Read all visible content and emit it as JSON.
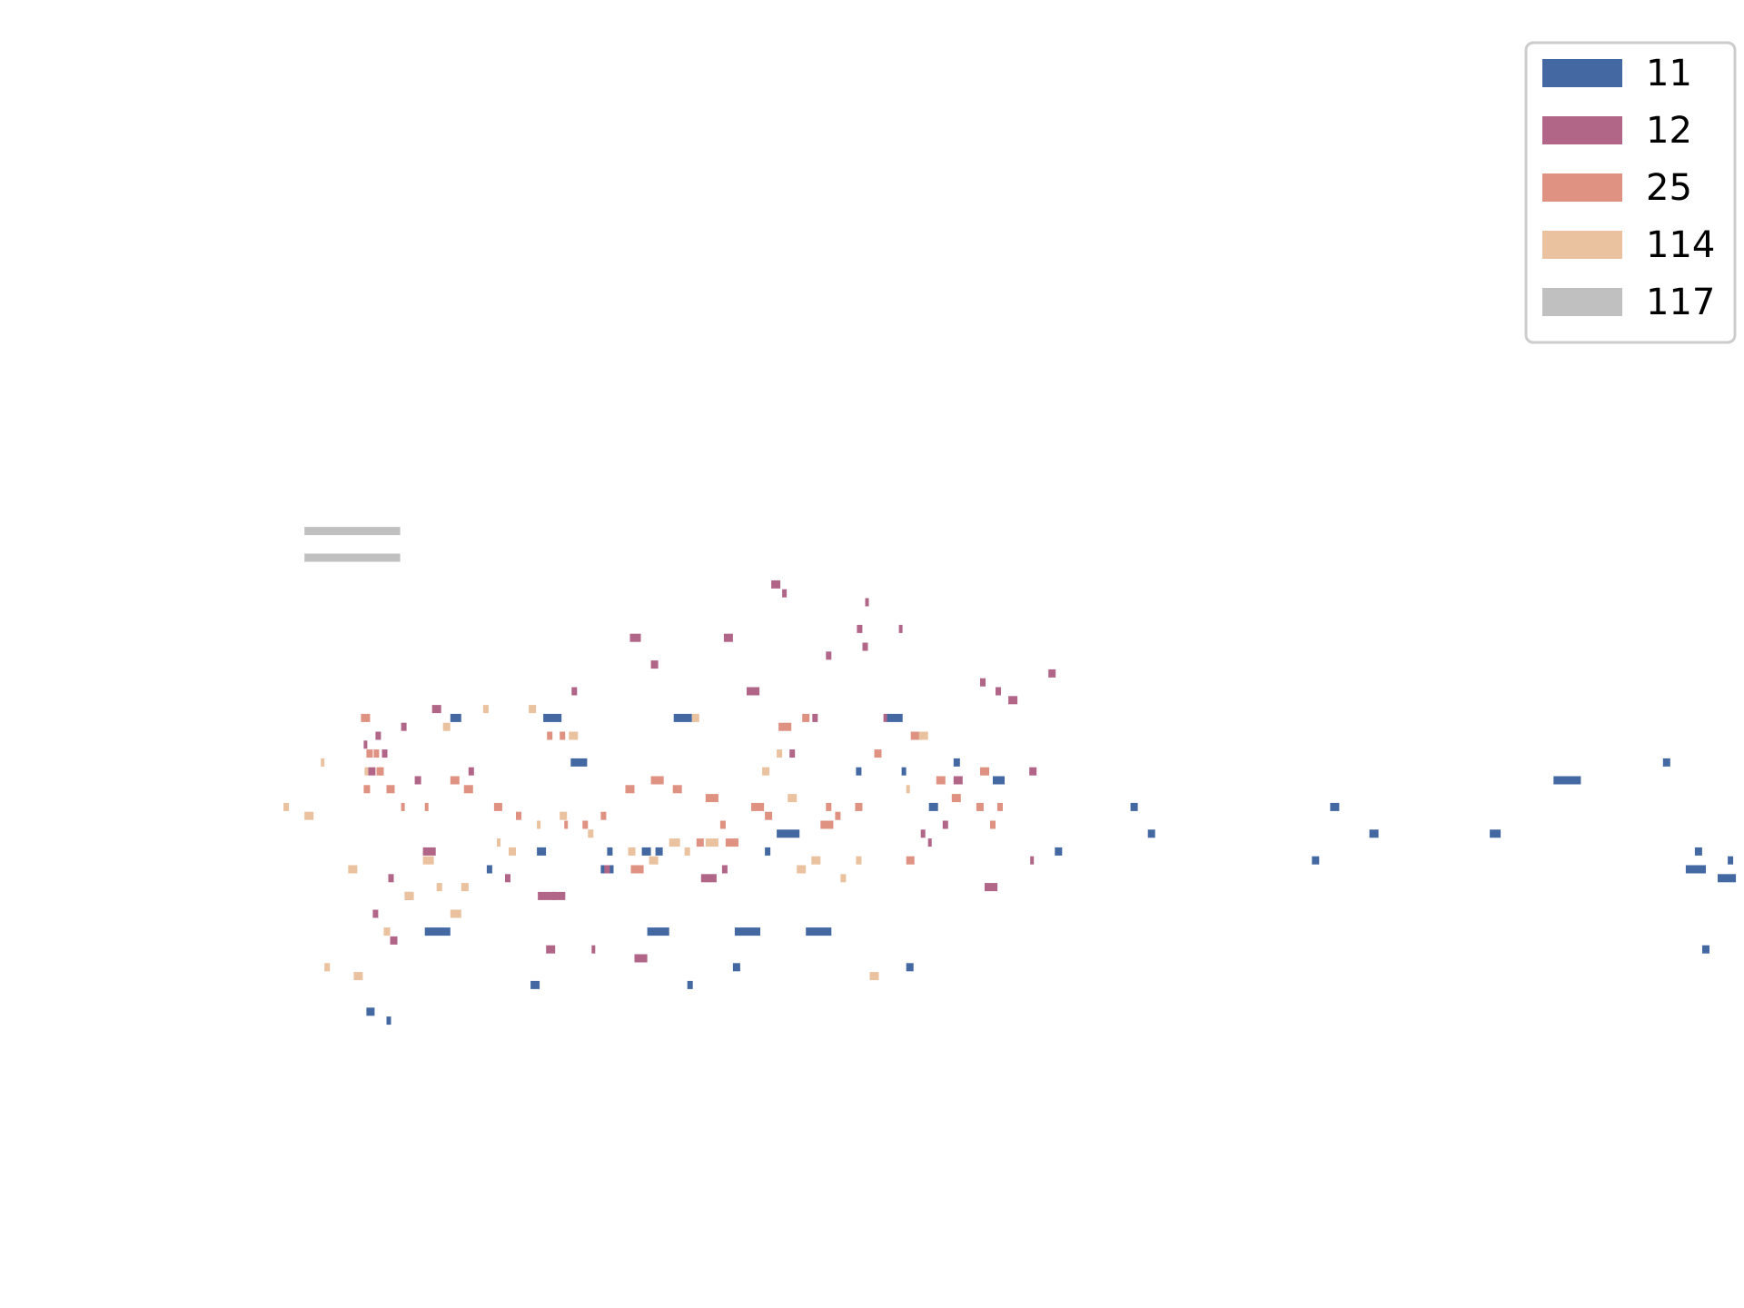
{
  "chart_data": {
    "type": "piano-roll",
    "title": "",
    "xlabel": "",
    "ylabel": "",
    "xlim": [
      0,
      1320
    ],
    "ylim": [
      20,
      120
    ],
    "legend": {
      "placement": "top-right",
      "entries": [
        {
          "label": "11",
          "color": "#4469a2"
        },
        {
          "label": "12",
          "color": "#b16688"
        },
        {
          "label": "25",
          "color": "#df9282"
        },
        {
          "label": "114",
          "color": "#eac29f"
        },
        {
          "label": "117",
          "color": "#c0c0c0"
        }
      ]
    },
    "series": [
      {
        "name": "11",
        "notes": [
          [
            108,
            9,
            39
          ],
          [
            130,
            5,
            38
          ],
          [
            172,
            28,
            48
          ],
          [
            200,
            12,
            72
          ],
          [
            240,
            6,
            55
          ],
          [
            288,
            10,
            42
          ],
          [
            295,
            10,
            57
          ],
          [
            302,
            20,
            72
          ],
          [
            332,
            18,
            67
          ],
          [
            365,
            14,
            55
          ],
          [
            372,
            6,
            57
          ],
          [
            410,
            10,
            57
          ],
          [
            416,
            24,
            48
          ],
          [
            425,
            8,
            57
          ],
          [
            445,
            20,
            72
          ],
          [
            460,
            6,
            42
          ],
          [
            510,
            8,
            44
          ],
          [
            512,
            28,
            48
          ],
          [
            545,
            6,
            57
          ],
          [
            558,
            25,
            59
          ],
          [
            590,
            28,
            48
          ],
          [
            645,
            6,
            66
          ],
          [
            678,
            18,
            72
          ],
          [
            695,
            5,
            66
          ],
          [
            700,
            8,
            44
          ],
          [
            725,
            10,
            62
          ],
          [
            752,
            7,
            67
          ],
          [
            795,
            13,
            65
          ],
          [
            863,
            8,
            57
          ],
          [
            946,
            8,
            62
          ],
          [
            965,
            8,
            59
          ],
          [
            1145,
            8,
            56
          ],
          [
            1165,
            10,
            62
          ],
          [
            1208,
            10,
            59
          ],
          [
            1340,
            12,
            59
          ],
          [
            1410,
            30,
            65
          ],
          [
            1530,
            8,
            67
          ],
          [
            1555,
            22,
            55
          ],
          [
            1565,
            8,
            57
          ],
          [
            1573,
            8,
            46
          ],
          [
            1590,
            20,
            54
          ],
          [
            1601,
            6,
            56
          ],
          [
            1619,
            6,
            54
          ]
        ]
      },
      {
        "name": "12",
        "notes": [
          [
            105,
            4,
            69
          ],
          [
            110,
            8,
            66
          ],
          [
            115,
            6,
            50
          ],
          [
            118,
            6,
            70
          ],
          [
            125,
            6,
            68
          ],
          [
            132,
            6,
            54
          ],
          [
            134,
            8,
            47
          ],
          [
            146,
            6,
            71
          ],
          [
            150,
            8,
            52
          ],
          [
            161,
            7,
            65
          ],
          [
            170,
            14,
            57
          ],
          [
            180,
            10,
            73
          ],
          [
            220,
            6,
            66
          ],
          [
            260,
            6,
            54
          ],
          [
            296,
            20,
            52
          ],
          [
            305,
            10,
            46
          ],
          [
            312,
            14,
            52
          ],
          [
            333,
            6,
            75
          ],
          [
            355,
            4,
            46
          ],
          [
            369,
            6,
            55
          ],
          [
            397,
            12,
            81
          ],
          [
            402,
            14,
            45
          ],
          [
            420,
            8,
            78
          ],
          [
            475,
            17,
            54
          ],
          [
            498,
            6,
            55
          ],
          [
            500,
            10,
            81
          ],
          [
            525,
            14,
            75
          ],
          [
            552,
            10,
            87
          ],
          [
            564,
            5,
            86
          ],
          [
            572,
            6,
            68
          ],
          [
            597,
            6,
            72
          ],
          [
            612,
            6,
            79
          ],
          [
            646,
            6,
            82
          ],
          [
            652,
            6,
            80
          ],
          [
            655,
            4,
            85
          ],
          [
            675,
            4,
            72
          ],
          [
            692,
            4,
            82
          ],
          [
            716,
            5,
            59
          ],
          [
            724,
            4,
            58
          ],
          [
            740,
            6,
            60
          ],
          [
            752,
            10,
            65
          ],
          [
            781,
            6,
            76
          ],
          [
            786,
            14,
            53
          ],
          [
            798,
            6,
            75
          ],
          [
            800,
            4,
            75
          ],
          [
            812,
            10,
            74
          ],
          [
            835,
            8,
            66
          ],
          [
            836,
            4,
            56
          ],
          [
            856,
            8,
            77
          ]
        ]
      },
      {
        "name": "25",
        "notes": [
          [
            102,
            10,
            72
          ],
          [
            105,
            7,
            64
          ],
          [
            108,
            7,
            68
          ],
          [
            116,
            6,
            68
          ],
          [
            119,
            6,
            66
          ],
          [
            122,
            5,
            66
          ],
          [
            130,
            9,
            64
          ],
          [
            146,
            4,
            62
          ],
          [
            172,
            4,
            62
          ],
          [
            200,
            10,
            65
          ],
          [
            215,
            10,
            64
          ],
          [
            248,
            9,
            62
          ],
          [
            272,
            6,
            61
          ],
          [
            306,
            6,
            70
          ],
          [
            320,
            6,
            70
          ],
          [
            325,
            4,
            60
          ],
          [
            345,
            6,
            60
          ],
          [
            365,
            6,
            61
          ],
          [
            392,
            10,
            64
          ],
          [
            398,
            14,
            55
          ],
          [
            420,
            14,
            65
          ],
          [
            444,
            10,
            64
          ],
          [
            470,
            8,
            58
          ],
          [
            480,
            14,
            63
          ],
          [
            496,
            6,
            60
          ],
          [
            502,
            14,
            58
          ],
          [
            530,
            14,
            62
          ],
          [
            545,
            8,
            61
          ],
          [
            560,
            14,
            71
          ],
          [
            586,
            8,
            72
          ],
          [
            606,
            14,
            60
          ],
          [
            612,
            6,
            62
          ],
          [
            622,
            6,
            61
          ],
          [
            644,
            8,
            62
          ],
          [
            665,
            8,
            68
          ],
          [
            700,
            9,
            56
          ],
          [
            705,
            10,
            70
          ],
          [
            733,
            10,
            65
          ],
          [
            750,
            10,
            63
          ],
          [
            777,
            8,
            62
          ],
          [
            781,
            10,
            66
          ],
          [
            792,
            6,
            60
          ],
          [
            800,
            6,
            62
          ]
        ]
      },
      {
        "name": "114",
        "notes": [
          [
            17,
            6,
            62
          ],
          [
            40,
            10,
            61
          ],
          [
            58,
            4,
            67
          ],
          [
            62,
            6,
            44
          ],
          [
            88,
            10,
            55
          ],
          [
            94,
            10,
            43
          ],
          [
            106,
            4,
            66
          ],
          [
            127,
            7,
            48
          ],
          [
            150,
            10,
            52
          ],
          [
            170,
            12,
            56
          ],
          [
            185,
            6,
            53
          ],
          [
            192,
            8,
            71
          ],
          [
            200,
            12,
            50
          ],
          [
            212,
            8,
            53
          ],
          [
            236,
            6,
            73
          ],
          [
            251,
            4,
            58
          ],
          [
            264,
            8,
            57
          ],
          [
            286,
            8,
            73
          ],
          [
            295,
            4,
            60
          ],
          [
            320,
            8,
            61
          ],
          [
            330,
            10,
            70
          ],
          [
            351,
            6,
            59
          ],
          [
            395,
            8,
            57
          ],
          [
            418,
            10,
            56
          ],
          [
            440,
            12,
            58
          ],
          [
            457,
            6,
            57
          ],
          [
            465,
            8,
            72
          ],
          [
            480,
            14,
            58
          ],
          [
            542,
            8,
            66
          ],
          [
            558,
            6,
            68
          ],
          [
            570,
            10,
            63
          ],
          [
            580,
            10,
            55
          ],
          [
            596,
            10,
            56
          ],
          [
            628,
            6,
            54
          ],
          [
            645,
            6,
            56
          ],
          [
            660,
            10,
            43
          ],
          [
            700,
            4,
            64
          ],
          [
            714,
            10,
            70
          ]
        ]
      },
      {
        "name": "117",
        "notes": [
          [
            40,
            105,
            93
          ],
          [
            40,
            105,
            90
          ]
        ]
      }
    ]
  }
}
